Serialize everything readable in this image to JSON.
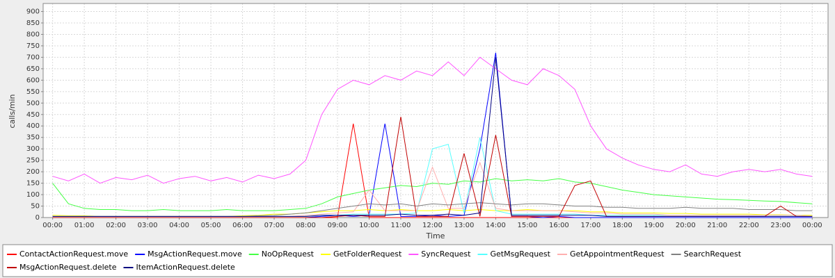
{
  "chart_data": {
    "type": "line",
    "y_label": "calls/min",
    "x_label": "Time",
    "x": [
      0,
      0.5,
      1,
      1.5,
      2,
      2.5,
      3,
      3.5,
      4,
      4.5,
      5,
      5.5,
      6,
      6.5,
      7,
      7.5,
      8,
      8.5,
      9,
      9.5,
      10,
      10.5,
      11,
      11.5,
      12,
      12.5,
      13,
      13.5,
      14,
      14.5,
      15,
      15.5,
      16,
      16.5,
      17,
      17.5,
      18,
      18.5,
      19,
      19.5,
      20,
      20.5,
      21,
      21.5,
      22,
      22.5,
      23,
      23.5,
      24
    ],
    "xlim": [
      -0.3,
      24.5
    ],
    "xticks": [
      {
        "value": 0,
        "label": "00:00"
      },
      {
        "value": 1,
        "label": "01:00"
      },
      {
        "value": 2,
        "label": "02:00"
      },
      {
        "value": 3,
        "label": "03:00"
      },
      {
        "value": 4,
        "label": "04:00"
      },
      {
        "value": 5,
        "label": "05:00"
      },
      {
        "value": 6,
        "label": "06:00"
      },
      {
        "value": 7,
        "label": "07:00"
      },
      {
        "value": 8,
        "label": "08:00"
      },
      {
        "value": 9,
        "label": "09:00"
      },
      {
        "value": 10,
        "label": "10:00"
      },
      {
        "value": 11,
        "label": "11:00"
      },
      {
        "value": 12,
        "label": "12:00"
      },
      {
        "value": 13,
        "label": "13:00"
      },
      {
        "value": 14,
        "label": "14:00"
      },
      {
        "value": 15,
        "label": "15:00"
      },
      {
        "value": 16,
        "label": "16:00"
      },
      {
        "value": 17,
        "label": "17:00"
      },
      {
        "value": 18,
        "label": "18:00"
      },
      {
        "value": 19,
        "label": "19:00"
      },
      {
        "value": 20,
        "label": "20:00"
      },
      {
        "value": 21,
        "label": "21:00"
      },
      {
        "value": 22,
        "label": "22:00"
      },
      {
        "value": 23,
        "label": "23:00"
      },
      {
        "value": 24,
        "label": "00:00"
      }
    ],
    "ylim": [
      0,
      935
    ],
    "yticks": [
      0,
      50,
      100,
      150,
      200,
      250,
      300,
      350,
      400,
      450,
      500,
      550,
      600,
      650,
      700,
      750,
      800,
      850,
      900
    ],
    "grid": true,
    "series": [
      {
        "name": "ContactActionRequest.move",
        "color": "#ff0000",
        "values": [
          0,
          0,
          0,
          0,
          0,
          0,
          0,
          0,
          0,
          0,
          0,
          0,
          0,
          0,
          0,
          0,
          0,
          0,
          0,
          410,
          0,
          0,
          0,
          0,
          0,
          0,
          0,
          0,
          0,
          0,
          0,
          0,
          0,
          0,
          0,
          0,
          0,
          0,
          0,
          0,
          0,
          0,
          0,
          0,
          0,
          0,
          0,
          0,
          0
        ]
      },
      {
        "name": "MsgActionRequest.move",
        "color": "#0000ff",
        "values": [
          0,
          0,
          0,
          0,
          0,
          0,
          0,
          0,
          0,
          0,
          0,
          0,
          0,
          0,
          0,
          0,
          0,
          5,
          10,
          5,
          10,
          410,
          5,
          5,
          10,
          5,
          10,
          300,
          720,
          5,
          5,
          0,
          5,
          0,
          0,
          0,
          0,
          0,
          0,
          0,
          0,
          0,
          0,
          0,
          0,
          0,
          0,
          0,
          0
        ]
      },
      {
        "name": "NoOpRequest",
        "color": "#44ff44",
        "values": [
          150,
          60,
          40,
          35,
          35,
          30,
          30,
          35,
          30,
          30,
          30,
          35,
          30,
          30,
          30,
          35,
          40,
          60,
          90,
          105,
          120,
          130,
          140,
          135,
          150,
          145,
          160,
          155,
          170,
          160,
          165,
          160,
          170,
          155,
          150,
          135,
          120,
          110,
          100,
          95,
          90,
          85,
          80,
          78,
          75,
          72,
          70,
          65,
          60
        ]
      },
      {
        "name": "GetFolderRequest",
        "color": "#ffff00",
        "values": [
          10,
          8,
          8,
          5,
          5,
          5,
          5,
          5,
          5,
          5,
          5,
          5,
          8,
          10,
          15,
          15,
          20,
          25,
          30,
          30,
          35,
          30,
          35,
          30,
          30,
          35,
          30,
          35,
          30,
          30,
          35,
          30,
          30,
          30,
          25,
          25,
          20,
          20,
          20,
          18,
          18,
          15,
          15,
          15,
          15,
          12,
          12,
          10,
          10
        ]
      },
      {
        "name": "SyncRequest",
        "color": "#ff55ff",
        "values": [
          180,
          160,
          190,
          150,
          175,
          165,
          185,
          150,
          170,
          180,
          160,
          175,
          155,
          185,
          170,
          190,
          250,
          450,
          560,
          600,
          580,
          620,
          600,
          640,
          620,
          680,
          620,
          700,
          650,
          600,
          580,
          650,
          620,
          560,
          400,
          300,
          260,
          230,
          210,
          200,
          230,
          190,
          180,
          200,
          210,
          200,
          210,
          190,
          180
        ]
      },
      {
        "name": "GetMsgRequest",
        "color": "#55ffff",
        "values": [
          5,
          5,
          5,
          5,
          5,
          5,
          5,
          5,
          5,
          5,
          5,
          5,
          5,
          5,
          5,
          5,
          5,
          10,
          10,
          15,
          15,
          15,
          15,
          20,
          300,
          320,
          20,
          350,
          30,
          15,
          15,
          15,
          15,
          15,
          10,
          10,
          10,
          10,
          10,
          10,
          10,
          10,
          10,
          10,
          10,
          10,
          10,
          10,
          5
        ]
      },
      {
        "name": "GetAppointmentRequest",
        "color": "#ffafaf",
        "values": [
          5,
          5,
          5,
          5,
          5,
          5,
          5,
          5,
          5,
          5,
          5,
          5,
          5,
          5,
          5,
          5,
          10,
          15,
          20,
          25,
          120,
          30,
          30,
          30,
          220,
          40,
          40,
          240,
          40,
          30,
          30,
          30,
          30,
          25,
          20,
          20,
          15,
          15,
          15,
          10,
          10,
          10,
          10,
          10,
          10,
          10,
          10,
          10,
          5
        ]
      },
      {
        "name": "SearchRequest",
        "color": "#808080",
        "values": [
          5,
          5,
          5,
          5,
          5,
          5,
          5,
          5,
          5,
          5,
          5,
          5,
          5,
          8,
          10,
          15,
          20,
          30,
          40,
          50,
          60,
          55,
          60,
          50,
          60,
          55,
          60,
          65,
          60,
          55,
          60,
          60,
          55,
          50,
          50,
          45,
          45,
          40,
          40,
          40,
          45,
          40,
          40,
          40,
          35,
          35,
          35,
          30,
          30
        ]
      },
      {
        "name": "MsgActionRequest.delete",
        "color": "#c00000",
        "values": [
          0,
          0,
          0,
          0,
          0,
          0,
          0,
          0,
          0,
          0,
          0,
          0,
          0,
          0,
          0,
          0,
          0,
          0,
          5,
          10,
          5,
          5,
          440,
          5,
          5,
          5,
          280,
          5,
          360,
          5,
          5,
          5,
          5,
          140,
          160,
          5,
          5,
          5,
          5,
          5,
          5,
          5,
          5,
          5,
          5,
          5,
          50,
          5,
          5
        ]
      },
      {
        "name": "ItemActionRequest.delete",
        "color": "#000080",
        "values": [
          5,
          5,
          5,
          5,
          5,
          5,
          5,
          5,
          5,
          5,
          5,
          5,
          5,
          5,
          5,
          5,
          5,
          10,
          10,
          10,
          10,
          10,
          15,
          10,
          10,
          15,
          10,
          20,
          700,
          10,
          10,
          10,
          10,
          10,
          10,
          5,
          5,
          5,
          5,
          5,
          5,
          5,
          5,
          5,
          5,
          5,
          5,
          5,
          5
        ]
      }
    ]
  }
}
